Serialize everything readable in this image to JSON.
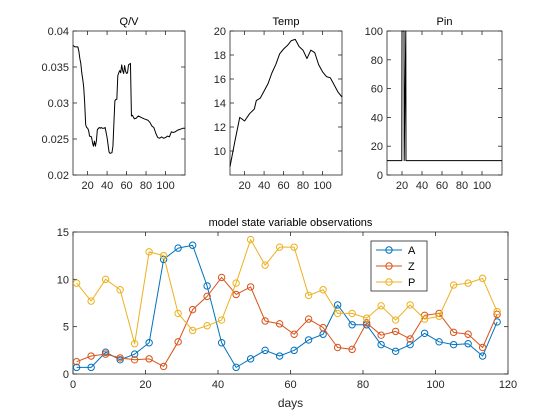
{
  "chart_data": [
    {
      "type": "line",
      "title": "Q/V",
      "xlabel": "",
      "ylabel": "",
      "xlim": [
        5,
        120
      ],
      "ylim": [
        0.02,
        0.04
      ],
      "xticks": [
        20,
        40,
        60,
        80,
        100
      ],
      "xticklabels": [
        "20",
        "40",
        "60",
        "80",
        "100"
      ],
      "yticks": [
        0.02,
        0.025,
        0.03,
        0.035,
        0.04
      ],
      "yticklabels": [
        "0.02",
        "0.025",
        "0.03",
        "0.035",
        "0.04"
      ],
      "grid": false,
      "series": [
        {
          "color": "#000000",
          "x": [
            5,
            6,
            7,
            10,
            11,
            12,
            13,
            14,
            15,
            16,
            17,
            18,
            19,
            20,
            21,
            22,
            24,
            25,
            26,
            27,
            28,
            29,
            30,
            32,
            33,
            34,
            35,
            37,
            38,
            40,
            42,
            43,
            45,
            46,
            47,
            48,
            49,
            50,
            51,
            52,
            53,
            54,
            55,
            56,
            57,
            58,
            59,
            60,
            61,
            62,
            64,
            65,
            66,
            68,
            70,
            72,
            75,
            78,
            80,
            82,
            84,
            86,
            88,
            90,
            92,
            94,
            96,
            98,
            100,
            102,
            104,
            106,
            108,
            110,
            112,
            114,
            116,
            118,
            120
          ],
          "y": [
            0.038,
            0.0379,
            0.0378,
            0.0378,
            0.0372,
            0.0362,
            0.0355,
            0.0342,
            0.0333,
            0.0322,
            0.03,
            0.027,
            0.0266,
            0.0265,
            0.0262,
            0.0254,
            0.0253,
            0.0245,
            0.024,
            0.0247,
            0.024,
            0.0247,
            0.0263,
            0.0266,
            0.0265,
            0.0266,
            0.0265,
            0.0265,
            0.0266,
            0.0252,
            0.0232,
            0.023,
            0.0231,
            0.024,
            0.0272,
            0.0303,
            0.0305,
            0.0305,
            0.0338,
            0.0342,
            0.0345,
            0.0342,
            0.0353,
            0.0345,
            0.0341,
            0.0352,
            0.0344,
            0.0341,
            0.0342,
            0.0353,
            0.0355,
            0.0282,
            0.0283,
            0.0278,
            0.0279,
            0.0282,
            0.028,
            0.0278,
            0.0277,
            0.0276,
            0.0273,
            0.0268,
            0.0266,
            0.0258,
            0.0252,
            0.0251,
            0.0253,
            0.0251,
            0.0252,
            0.0254,
            0.0253,
            0.026,
            0.0259,
            0.026,
            0.0262,
            0.0263,
            0.0264,
            0.0265,
            0.0265
          ]
        }
      ]
    },
    {
      "type": "line",
      "title": "Temp",
      "xlabel": "",
      "ylabel": "",
      "xlim": [
        5,
        120
      ],
      "ylim": [
        8,
        20
      ],
      "xticks": [
        20,
        40,
        60,
        80,
        100
      ],
      "xticklabels": [
        "20",
        "40",
        "60",
        "80",
        "100"
      ],
      "yticks": [
        10,
        12,
        14,
        16,
        18,
        20
      ],
      "yticklabels": [
        "10",
        "12",
        "14",
        "16",
        "18",
        "20"
      ],
      "grid": false,
      "series": [
        {
          "color": "#000000",
          "x": [
            5,
            10,
            15,
            20,
            25,
            30,
            32,
            36,
            40,
            44,
            48,
            52,
            56,
            60,
            64,
            68,
            72,
            76,
            80,
            84,
            88,
            92,
            96,
            100,
            104,
            108,
            112,
            116,
            120
          ],
          "y": [
            8.7,
            10.8,
            12.8,
            12.5,
            13.1,
            13.5,
            14.2,
            14.4,
            15,
            15.6,
            16.5,
            17.2,
            18.1,
            18.5,
            18.8,
            19.2,
            19.3,
            18.7,
            18.4,
            17.7,
            18.4,
            18.2,
            17.2,
            16.6,
            16.2,
            16.1,
            15.5,
            14.9,
            14.5
          ]
        }
      ]
    },
    {
      "type": "line",
      "title": "Pin",
      "xlabel": "",
      "ylabel": "",
      "xlim": [
        5,
        120
      ],
      "ylim": [
        0,
        100
      ],
      "xticks": [
        20,
        40,
        60,
        80,
        100
      ],
      "xticklabels": [
        "20",
        "40",
        "60",
        "80",
        "100"
      ],
      "yticks": [
        0,
        20,
        40,
        60,
        80,
        100
      ],
      "yticklabels": [
        "0",
        "20",
        "40",
        "60",
        "80",
        "100"
      ],
      "grid": false,
      "series": [
        {
          "color": "#000000",
          "x": [
            5,
            19.8,
            20,
            22,
            22.2,
            23.8,
            24,
            120
          ],
          "y": [
            10,
            10,
            100,
            100,
            10,
            100,
            10,
            10
          ]
        }
      ]
    },
    {
      "type": "line",
      "title": "model state variable observations",
      "xlabel": "days",
      "ylabel": "",
      "xlim": [
        0,
        120
      ],
      "ylim": [
        0,
        15
      ],
      "xticks": [
        0,
        20,
        40,
        60,
        80,
        100,
        120
      ],
      "xticklabels": [
        "0",
        "20",
        "40",
        "60",
        "80",
        "100",
        "120"
      ],
      "yticks": [
        0,
        5,
        10,
        15
      ],
      "yticklabels": [
        "0",
        "5",
        "10",
        "15"
      ],
      "grid": false,
      "legend": "top-right",
      "series": [
        {
          "name": "A",
          "color": "#0072BD",
          "x": [
            1,
            5,
            9,
            13,
            17,
            21,
            25,
            29,
            33,
            37,
            41,
            45,
            49,
            53,
            57,
            61,
            65,
            69,
            73,
            77,
            81,
            85,
            89,
            93,
            97,
            101,
            105,
            109,
            113,
            117
          ],
          "y": [
            0.7,
            0.7,
            2.3,
            1.5,
            2.1,
            3.3,
            12.1,
            13.3,
            13.6,
            9.3,
            3.3,
            0.7,
            1.6,
            2.5,
            1.9,
            2.5,
            3.6,
            4.2,
            7.3,
            5.2,
            5.2,
            3.1,
            2.4,
            3.1,
            4.3,
            3.4,
            3.1,
            3.2,
            1.9,
            5.5
          ]
        },
        {
          "name": "Z",
          "color": "#D95319",
          "x": [
            1,
            5,
            9,
            13,
            17,
            21,
            25,
            29,
            33,
            37,
            41,
            45,
            49,
            53,
            57,
            61,
            65,
            69,
            73,
            77,
            81,
            85,
            89,
            93,
            97,
            101,
            105,
            109,
            113,
            117
          ],
          "y": [
            1.3,
            1.9,
            2.1,
            1.7,
            1.5,
            1.6,
            0.8,
            3.4,
            6.8,
            8.2,
            10.2,
            8.4,
            9.2,
            5.6,
            5.3,
            4.2,
            5.8,
            4.9,
            2.8,
            2.6,
            5.4,
            4.1,
            4.5,
            3.7,
            6.2,
            6.4,
            4.4,
            4.2,
            2.8,
            6.3
          ]
        },
        {
          "name": "P",
          "color": "#EDB120",
          "x": [
            1,
            5,
            9,
            13,
            17,
            21,
            25,
            29,
            33,
            37,
            41,
            45,
            49,
            53,
            57,
            61,
            65,
            69,
            73,
            77,
            81,
            85,
            89,
            93,
            97,
            101,
            105,
            109,
            113,
            117
          ],
          "y": [
            9.6,
            7.7,
            10,
            8.9,
            3.2,
            12.9,
            12.5,
            6.4,
            4.6,
            5.1,
            5.7,
            9.6,
            14.2,
            11.5,
            13.4,
            13.4,
            8.3,
            8.9,
            6.4,
            6.4,
            5.9,
            7.2,
            5.7,
            7.3,
            5.8,
            6.1,
            9.4,
            9.6,
            10.1,
            6.6
          ]
        }
      ]
    }
  ]
}
